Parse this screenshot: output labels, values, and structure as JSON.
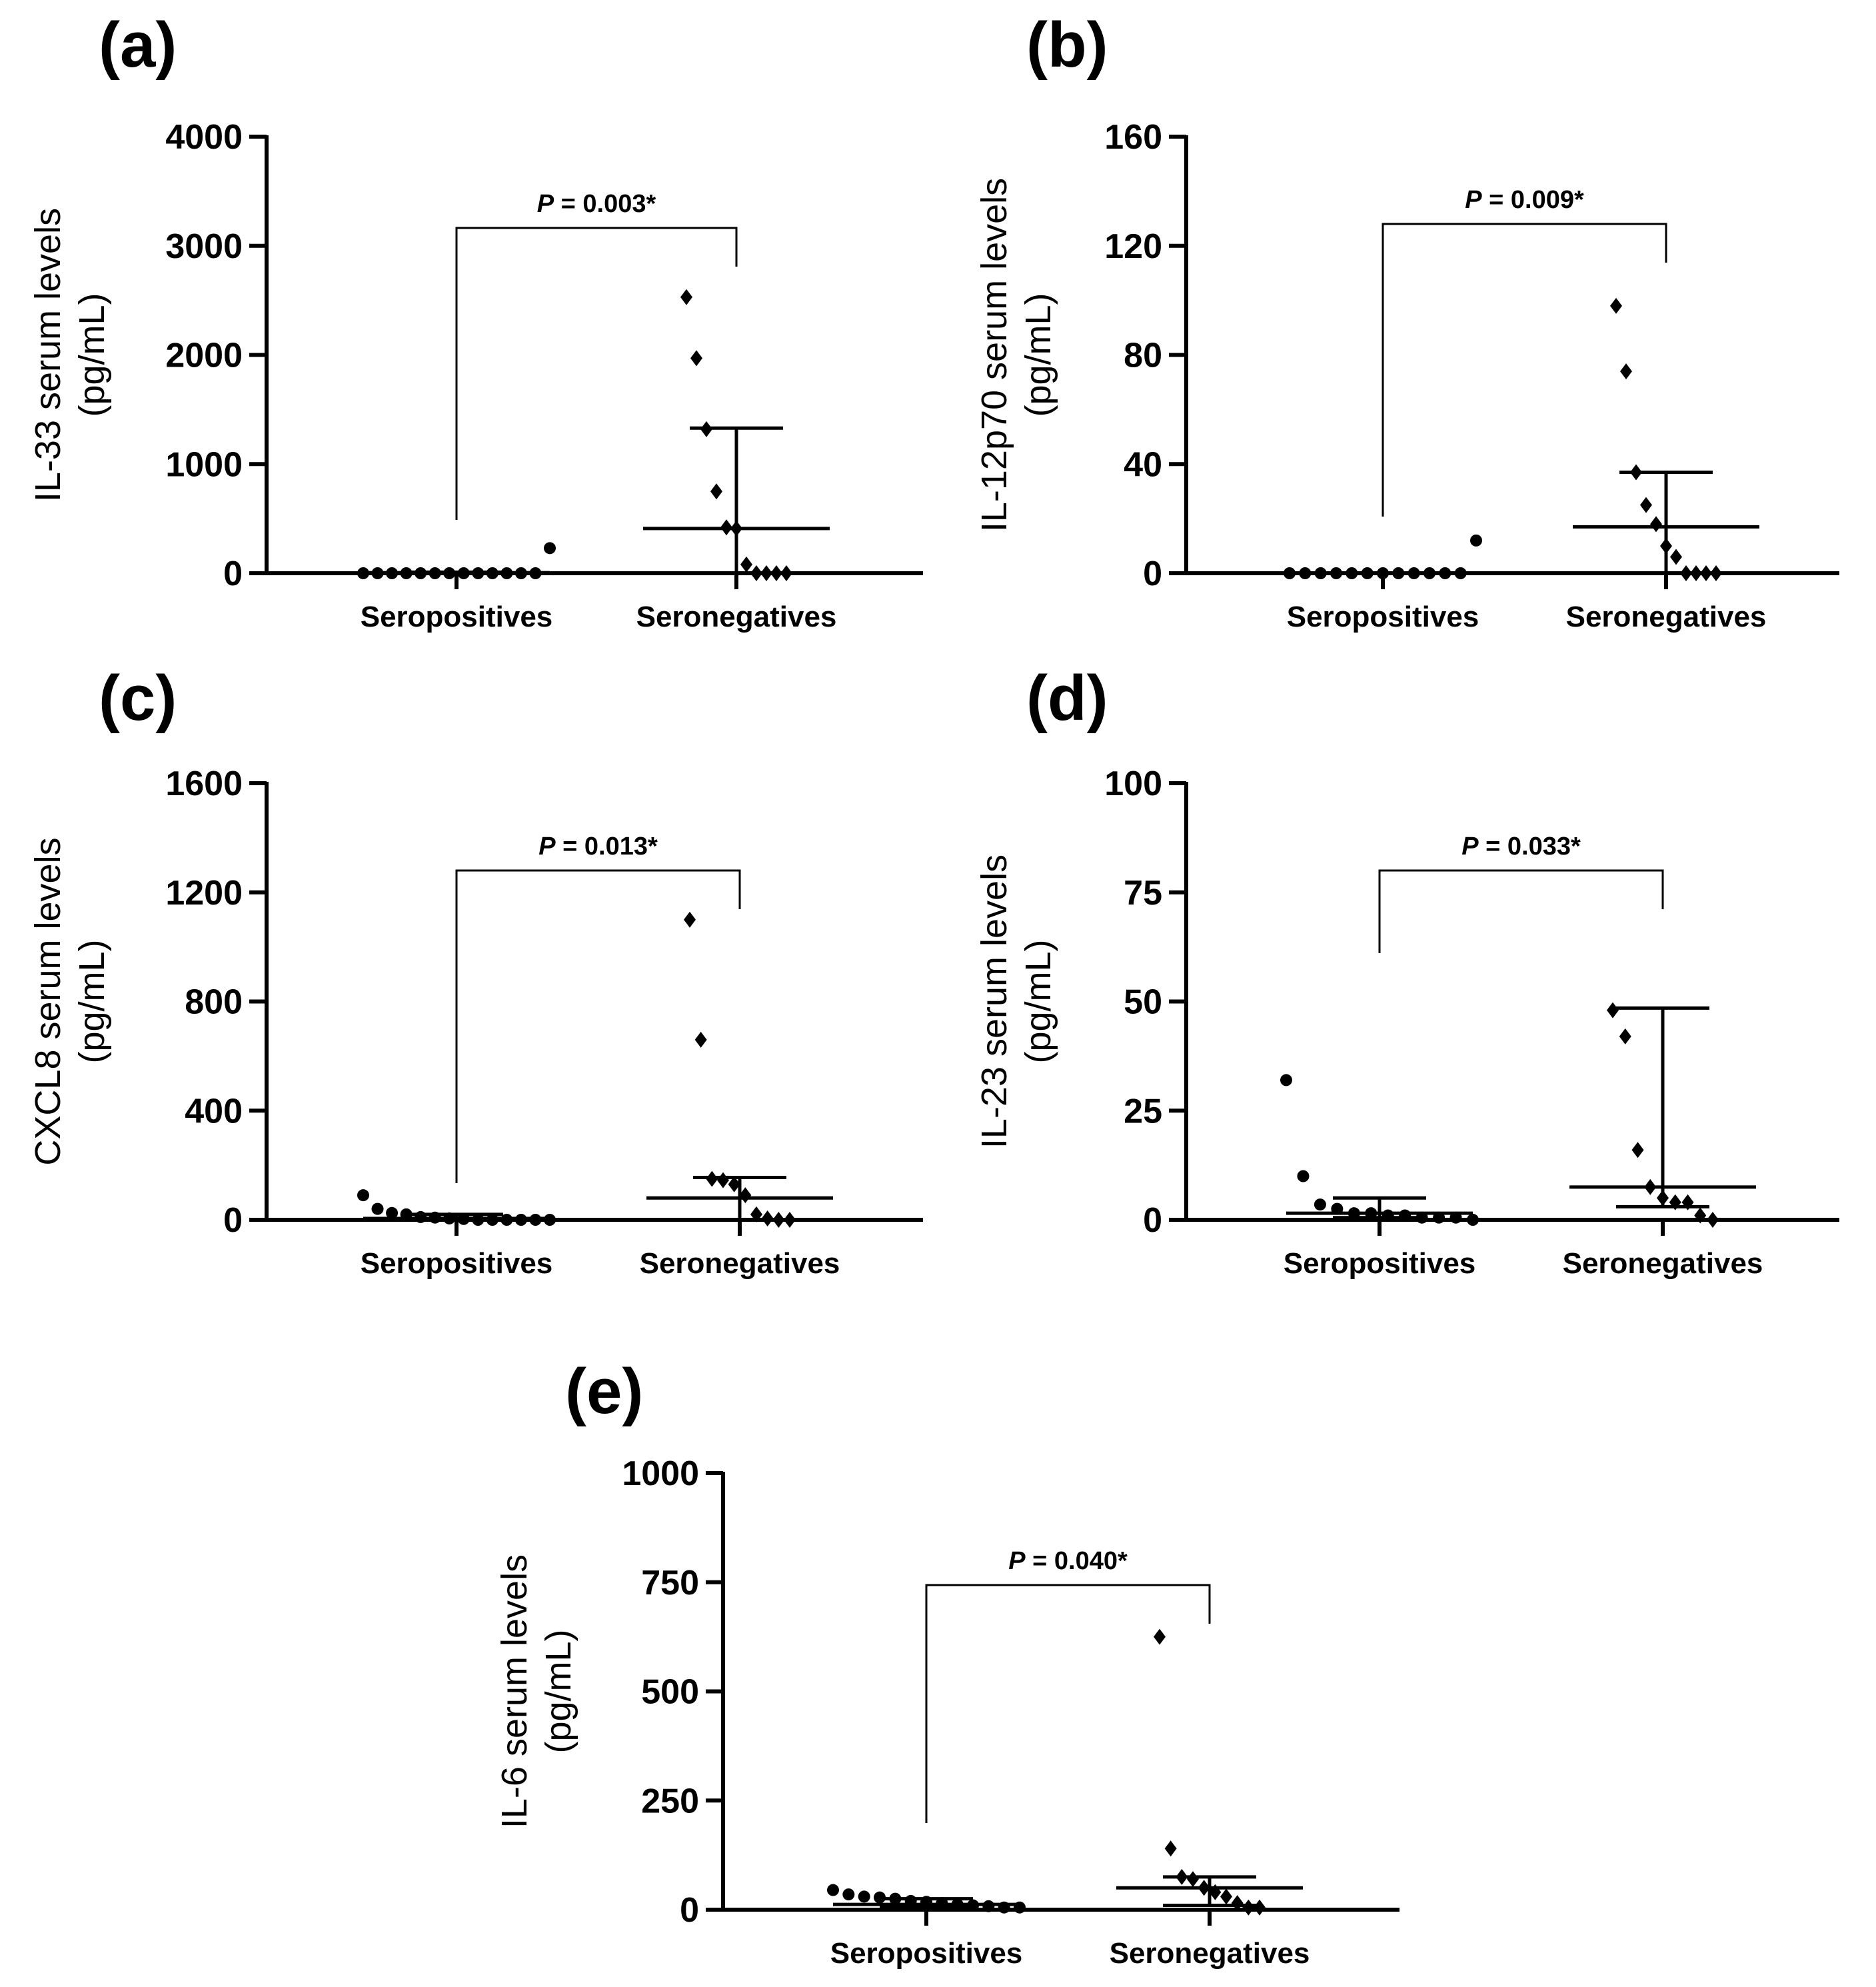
{
  "chart_data": [
    {
      "type": "scatter",
      "panel": "(a)",
      "ylabel": [
        "IL-33 serum levels",
        "(pg/mL)"
      ],
      "yticks": [
        "0",
        "1000",
        "2000",
        "3000",
        "4000"
      ],
      "ylim": [
        0,
        4000
      ],
      "categories": [
        "Seropositives",
        "Seronegatives"
      ],
      "pvalue": {
        "p": "P",
        "rest": " = 0.003*"
      },
      "series": [
        {
          "name": "Seropositives",
          "marker": "circle",
          "values": [
            0,
            0,
            0,
            0,
            0,
            0,
            0,
            0,
            0,
            0,
            0,
            0,
            0,
            230
          ],
          "median": 5,
          "iqr": [
            0,
            10
          ]
        },
        {
          "name": "Seronegatives",
          "marker": "diamond",
          "values": [
            2530,
            1970,
            1320,
            750,
            420,
            410,
            80,
            0,
            0,
            0,
            0
          ],
          "median": 410,
          "iqr": [
            0,
            1330
          ]
        }
      ]
    },
    {
      "type": "scatter",
      "panel": "(b)",
      "ylabel": [
        "IL-12p70 serum levels",
        "(pg/mL)"
      ],
      "yticks": [
        "0",
        "40",
        "80",
        "120",
        "160"
      ],
      "ylim": [
        0,
        160
      ],
      "categories": [
        "Seropositives",
        "Seronegatives"
      ],
      "pvalue": {
        "p": "P",
        "rest": " = 0.009*"
      },
      "series": [
        {
          "name": "Seropositives",
          "marker": "circle",
          "values": [
            0,
            0,
            0,
            0,
            0,
            0,
            0,
            0,
            0,
            0,
            0,
            0,
            12
          ],
          "median": 0,
          "iqr": [
            0,
            0
          ]
        },
        {
          "name": "Seronegatives",
          "marker": "diamond",
          "values": [
            98,
            74,
            37,
            25,
            18,
            10,
            6,
            0,
            0,
            0,
            0
          ],
          "median": 17,
          "iqr": [
            0,
            37
          ]
        }
      ]
    },
    {
      "type": "scatter",
      "panel": "(c)",
      "ylabel": [
        "CXCL8 serum levels",
        "(pg/mL)"
      ],
      "yticks": [
        "0",
        "400",
        "800",
        "1200",
        "1600"
      ],
      "ylim": [
        0,
        1600
      ],
      "categories": [
        "Seropositives",
        "Seronegatives"
      ],
      "pvalue": {
        "p": "P",
        "rest": " = 0.013*"
      },
      "series": [
        {
          "name": "Seropositives",
          "marker": "circle",
          "values": [
            90,
            40,
            25,
            20,
            10,
            8,
            5,
            3,
            0,
            0,
            0,
            0,
            0,
            0
          ],
          "median": 5,
          "iqr": [
            0,
            20
          ]
        },
        {
          "name": "Seronegatives",
          "marker": "diamond",
          "values": [
            1100,
            660,
            150,
            145,
            130,
            90,
            20,
            5,
            0,
            0
          ],
          "median": 80,
          "iqr": [
            0,
            155
          ]
        }
      ]
    },
    {
      "type": "scatter",
      "panel": "(d)",
      "ylabel": [
        "IL-23 serum levels",
        "(pg/mL)"
      ],
      "yticks": [
        "0",
        "25",
        "50",
        "75",
        "100"
      ],
      "ylim": [
        0,
        100
      ],
      "categories": [
        "Seropositives",
        "Seronegatives"
      ],
      "pvalue": {
        "p": "P",
        "rest": " = 0.033*"
      },
      "series": [
        {
          "name": "Seropositives",
          "marker": "circle",
          "values": [
            32,
            10,
            3.5,
            2.5,
            1.5,
            1.5,
            1,
            1,
            0.5,
            0.5,
            0.5,
            0
          ],
          "median": 1.5,
          "iqr": [
            0.5,
            5
          ]
        },
        {
          "name": "Seronegatives",
          "marker": "diamond",
          "values": [
            48,
            42,
            16,
            7.5,
            5,
            4,
            4,
            1,
            0
          ],
          "median": 7.5,
          "iqr": [
            3,
            48.5
          ]
        }
      ]
    },
    {
      "type": "scatter",
      "panel": "(e)",
      "ylabel": [
        "IL-6 serum levels",
        "(pg/mL)"
      ],
      "yticks": [
        "0",
        "250",
        "500",
        "750",
        "1000"
      ],
      "ylim": [
        0,
        1000
      ],
      "categories": [
        "Seropositives",
        "Seronegatives"
      ],
      "pvalue": {
        "p": "P",
        "rest": " = 0.040*"
      },
      "series": [
        {
          "name": "Seropositives",
          "marker": "circle",
          "values": [
            45,
            35,
            30,
            28,
            25,
            20,
            18,
            15,
            12,
            10,
            8,
            5,
            5
          ],
          "median": 12,
          "iqr": [
            5,
            25
          ]
        },
        {
          "name": "Seronegatives",
          "marker": "diamond",
          "values": [
            625,
            140,
            75,
            70,
            50,
            40,
            30,
            15,
            5,
            5
          ],
          "median": 50,
          "iqr": [
            10,
            75
          ]
        }
      ]
    }
  ]
}
